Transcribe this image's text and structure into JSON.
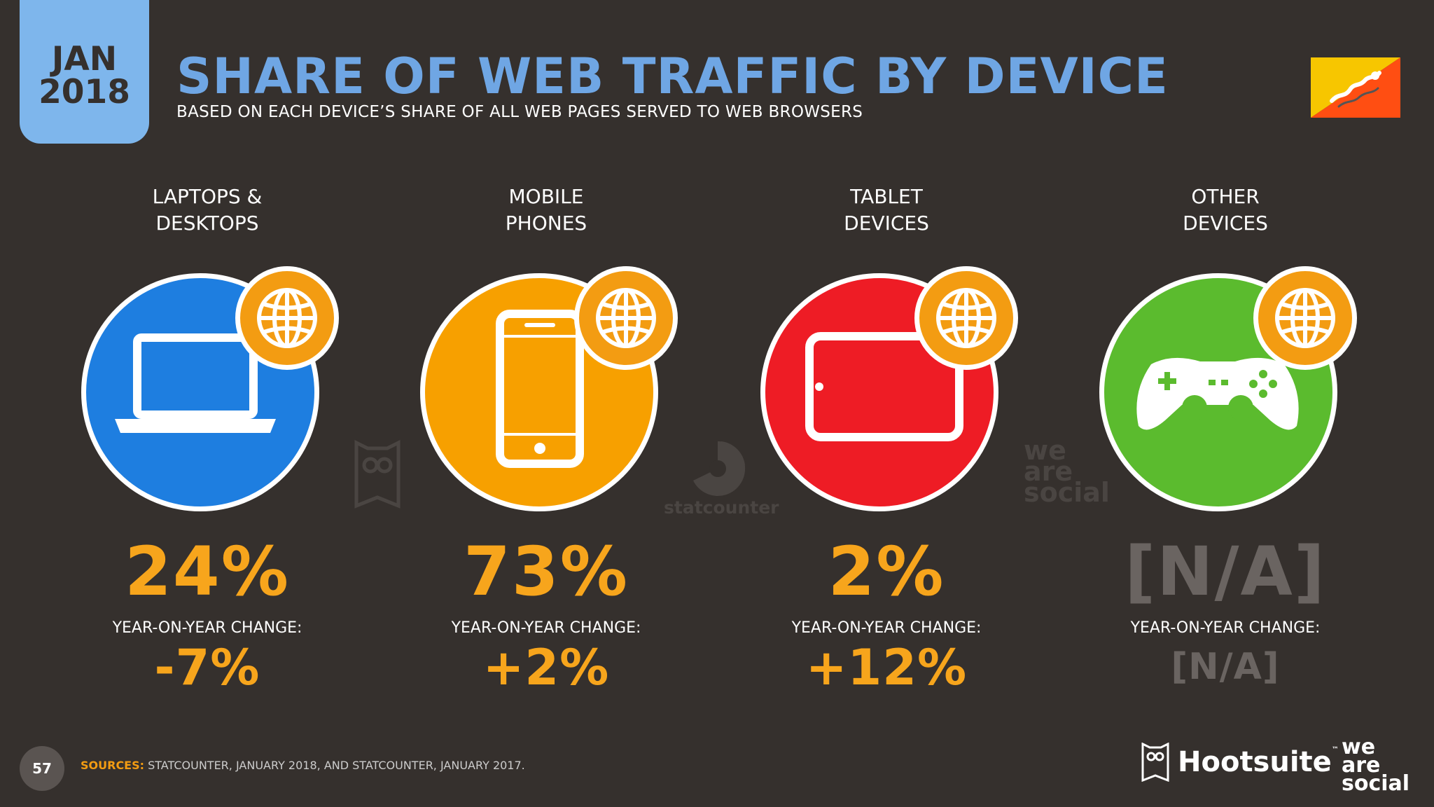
{
  "header": {
    "month": "JAN",
    "year": "2018",
    "title": "SHARE OF WEB TRAFFIC BY DEVICE",
    "subtitle": "BASED ON EACH DEVICE’S SHARE OF ALL WEB PAGES SERVED TO WEB BROWSERS"
  },
  "flag": {
    "icon": "bhutan-flag-icon",
    "colors": [
      "#f7c600",
      "#ff4e12"
    ]
  },
  "devices": [
    {
      "line1": "LAPTOPS &",
      "line2": "DESKTOPS",
      "share": "24%",
      "yoy_label": "YEAR-ON-YEAR CHANGE:",
      "yoy": "-7%",
      "color": "#1e7ee0",
      "icon": "laptop-icon"
    },
    {
      "line1": "MOBILE",
      "line2": "PHONES",
      "share": "73%",
      "yoy_label": "YEAR-ON-YEAR CHANGE:",
      "yoy": "+2%",
      "color": "#f7a000",
      "icon": "mobile-phone-icon"
    },
    {
      "line1": "TABLET",
      "line2": "DEVICES",
      "share": "2%",
      "yoy_label": "YEAR-ON-YEAR CHANGE:",
      "yoy": "+12%",
      "color": "#ee1c25",
      "icon": "tablet-icon"
    },
    {
      "line1": "OTHER",
      "line2": "DEVICES",
      "share": "[N/A]",
      "yoy_label": "YEAR-ON-YEAR CHANGE:",
      "yoy": "[N/A]",
      "color": "#5bbb2e",
      "icon": "gamepad-icon"
    }
  ],
  "watermarks": {
    "statcounter": "statcounter",
    "we_are_social": [
      "we",
      "are",
      "social"
    ]
  },
  "footer": {
    "page_number": "57",
    "sources_label": "SOURCES:",
    "sources_text": " STATCOUNTER, JANUARY 2018, AND STATCOUNTER, JANUARY 2017.",
    "hootsuite": "Hootsuite",
    "hootsuite_tm": "™",
    "was": [
      "we",
      "are",
      "social"
    ]
  }
}
